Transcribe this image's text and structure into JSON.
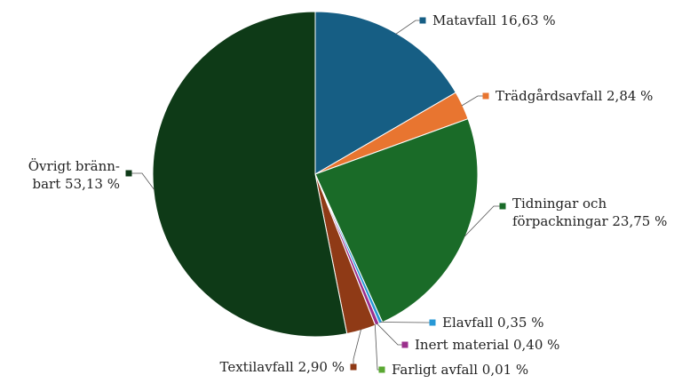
{
  "chart_data": {
    "type": "pie",
    "slices": [
      {
        "key": "matavfall",
        "label_lines": [
          "Matavfall 16,63 %"
        ],
        "value": 16.63,
        "color": "#165e84"
      },
      {
        "key": "tradgardsavfall",
        "label_lines": [
          "Trädgårdsavfall 2,84 %"
        ],
        "value": 2.84,
        "color": "#e87530"
      },
      {
        "key": "tidningar",
        "label_lines": [
          "Tidningar och",
          "förpackningar 23,75 %"
        ],
        "value": 23.75,
        "color": "#1a6b28"
      },
      {
        "key": "elavfall",
        "label_lines": [
          "Elavfall 0,35 %"
        ],
        "value": 0.35,
        "color": "#2798d6"
      },
      {
        "key": "inert",
        "label_lines": [
          "Inert material 0,40 %"
        ],
        "value": 0.4,
        "color": "#9b2f8c"
      },
      {
        "key": "farligt",
        "label_lines": [
          "Farligt avfall 0,01 %"
        ],
        "value": 0.01,
        "color": "#5aa832"
      },
      {
        "key": "textil",
        "label_lines": [
          "Textilavfall 2,90 %"
        ],
        "value": 2.9,
        "color": "#8f3a16"
      },
      {
        "key": "ovrigt",
        "label_lines": [
          "Övrigt bränn-",
          "bart 53,13 %"
        ],
        "value": 53.13,
        "color": "#0e3a17"
      }
    ]
  }
}
